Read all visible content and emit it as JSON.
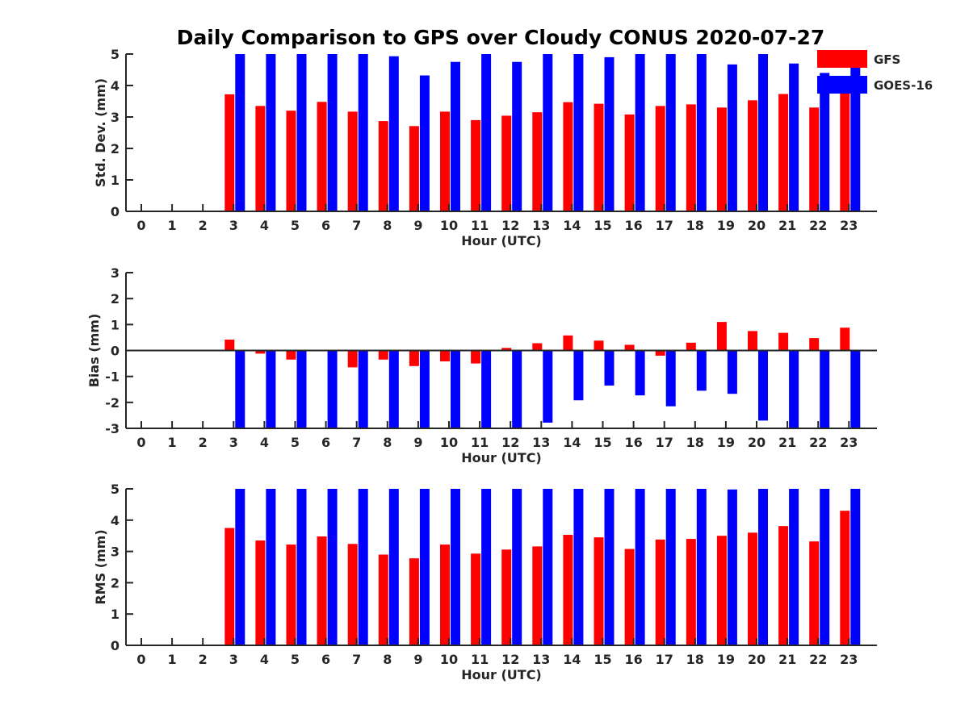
{
  "title": "Daily Comparison to GPS over Cloudy CONUS 2020-07-27",
  "colors": {
    "gfs": "#ff0000",
    "goes": "#0000ff",
    "axis": "#262626"
  },
  "legend": {
    "placement": "top-right",
    "items": [
      "GFS",
      "GOES-16"
    ]
  },
  "chart_data": [
    {
      "type": "bar",
      "ylabel": "Std. Dev. (mm)",
      "xlabel": "Hour (UTC)",
      "ylim": [
        0,
        5
      ],
      "yticks": [
        0,
        1,
        2,
        3,
        4,
        5
      ],
      "categories": [
        "0",
        "1",
        "2",
        "3",
        "4",
        "5",
        "6",
        "7",
        "8",
        "9",
        "10",
        "11",
        "12",
        "13",
        "14",
        "15",
        "16",
        "17",
        "18",
        "19",
        "20",
        "21",
        "22",
        "23"
      ],
      "series": [
        {
          "name": "GFS",
          "values": [
            null,
            null,
            null,
            3.72,
            3.35,
            3.2,
            3.48,
            3.17,
            2.87,
            2.71,
            3.17,
            2.9,
            3.04,
            3.15,
            3.47,
            3.42,
            3.08,
            3.35,
            3.4,
            3.3,
            3.53,
            3.73,
            3.3,
            3.82
          ]
        },
        {
          "name": "GOES-16",
          "values": [
            null,
            null,
            null,
            5,
            5,
            5,
            5,
            5,
            4.93,
            4.32,
            4.75,
            5,
            4.75,
            5,
            5,
            4.9,
            5,
            5,
            5,
            4.67,
            5,
            4.7,
            4.4,
            4.6
          ]
        }
      ]
    },
    {
      "type": "bar",
      "ylabel": "Bias (mm)",
      "xlabel": "Hour (UTC)",
      "ylim": [
        -3,
        3
      ],
      "yticks": [
        -3,
        -2,
        -1,
        0,
        1,
        2,
        3
      ],
      "categories": [
        "0",
        "1",
        "2",
        "3",
        "4",
        "5",
        "6",
        "7",
        "8",
        "9",
        "10",
        "11",
        "12",
        "13",
        "14",
        "15",
        "16",
        "17",
        "18",
        "19",
        "20",
        "21",
        "22",
        "23"
      ],
      "series": [
        {
          "name": "GFS",
          "values": [
            null,
            null,
            null,
            0.42,
            -0.12,
            -0.35,
            -0.02,
            -0.65,
            -0.35,
            -0.6,
            -0.42,
            -0.5,
            0.1,
            0.28,
            0.58,
            0.38,
            0.22,
            -0.2,
            0.3,
            1.1,
            0.75,
            0.68,
            0.48,
            0.88
          ]
        },
        {
          "name": "GOES-16",
          "values": [
            null,
            null,
            null,
            -3,
            -3,
            -3,
            -3,
            -3,
            -3,
            -3,
            -3,
            -3,
            -3,
            -2.78,
            -1.92,
            -1.35,
            -1.73,
            -2.15,
            -1.55,
            -1.67,
            -2.7,
            -3,
            -3,
            -3
          ]
        }
      ]
    },
    {
      "type": "bar",
      "ylabel": "RMS (mm)",
      "xlabel": "Hour (UTC)",
      "ylim": [
        0,
        5
      ],
      "yticks": [
        0,
        1,
        2,
        3,
        4,
        5
      ],
      "categories": [
        "0",
        "1",
        "2",
        "3",
        "4",
        "5",
        "6",
        "7",
        "8",
        "9",
        "10",
        "11",
        "12",
        "13",
        "14",
        "15",
        "16",
        "17",
        "18",
        "19",
        "20",
        "21",
        "22",
        "23"
      ],
      "series": [
        {
          "name": "GFS",
          "values": [
            null,
            null,
            null,
            3.75,
            3.35,
            3.22,
            3.48,
            3.24,
            2.9,
            2.78,
            3.22,
            2.93,
            3.06,
            3.16,
            3.53,
            3.45,
            3.08,
            3.38,
            3.4,
            3.5,
            3.6,
            3.81,
            3.32,
            4.3
          ]
        },
        {
          "name": "GOES-16",
          "values": [
            null,
            null,
            null,
            5,
            5,
            5,
            5,
            5,
            5,
            5,
            5,
            5,
            5,
            5,
            5,
            5,
            5,
            5,
            5,
            4.98,
            5,
            5,
            5,
            5
          ]
        }
      ]
    }
  ]
}
